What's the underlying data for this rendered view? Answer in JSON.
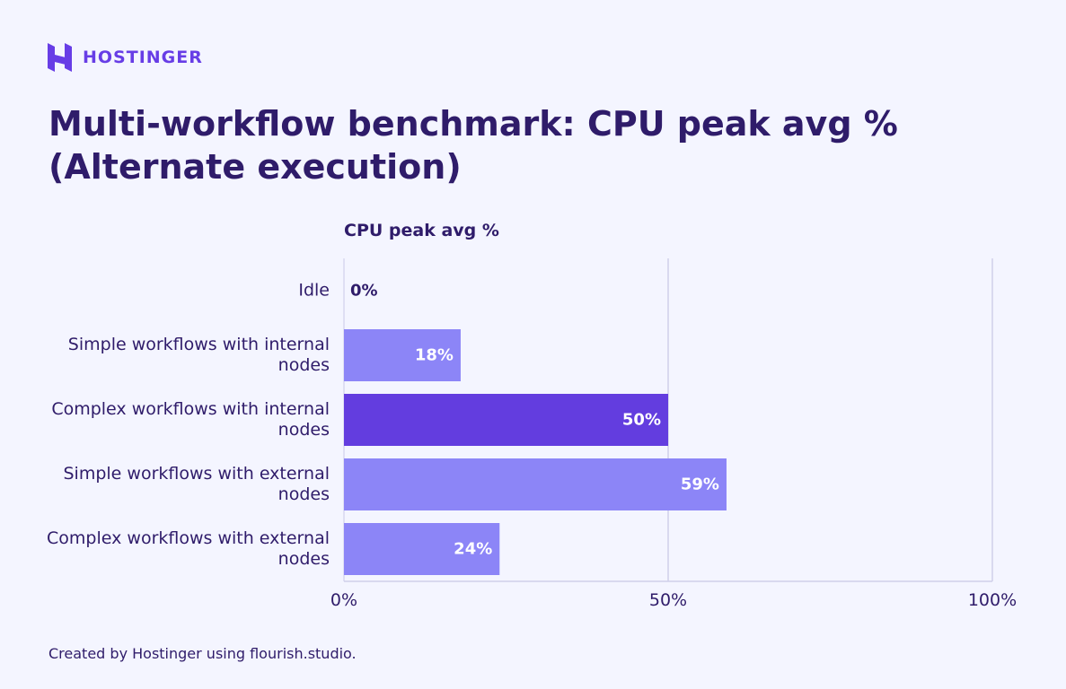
{
  "brand": "HOSTINGER",
  "footer": "Created by Hostinger using flourish.studio.",
  "chart_data": {
    "type": "barh",
    "title": "Multi-workflow benchmark: CPU peak avg % (Alternate execution)",
    "x_label": "CPU peak avg %",
    "categories": [
      "Idle",
      "Simple workflows with internal nodes",
      "Complex workflows with internal nodes",
      "Simple workflows with external nodes",
      "Complex workflows with external nodes"
    ],
    "values": [
      0,
      18,
      50,
      59,
      24
    ],
    "value_labels": [
      "0%",
      "18%",
      "50%",
      "59%",
      "24%"
    ],
    "colors": [
      "#8c85f7",
      "#8c85f7",
      "#633ddf",
      "#8c85f7",
      "#8c85f7"
    ],
    "xlim": [
      0,
      100
    ],
    "xticks": [
      {
        "value": 0,
        "label": "0%"
      },
      {
        "value": 50,
        "label": "50%"
      },
      {
        "value": 100,
        "label": "100%"
      }
    ],
    "grid": true
  }
}
